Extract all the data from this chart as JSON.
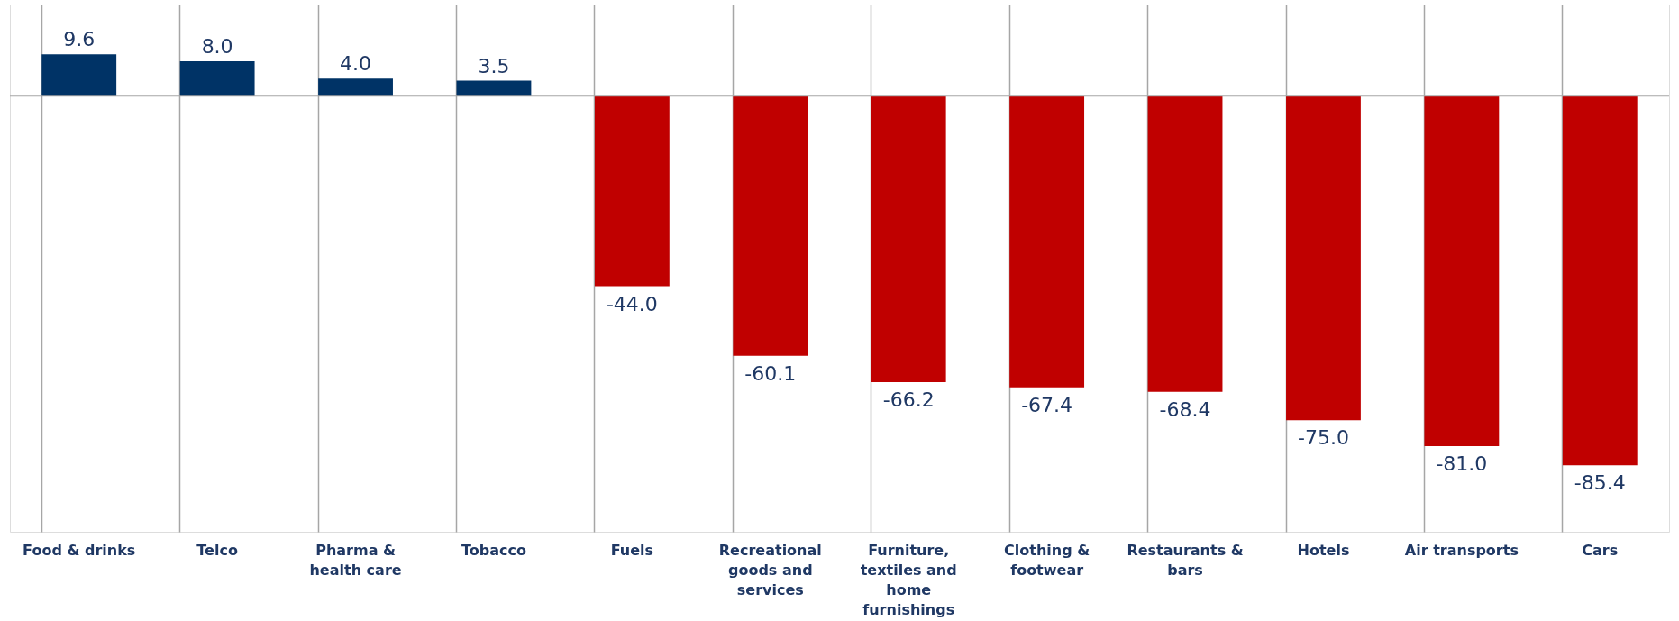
{
  "chart_data": {
    "type": "bar",
    "categories": [
      "Food & drinks",
      "Telco",
      "Pharma & health care",
      "Tobacco",
      "Fuels",
      "Recreational goods and services",
      "Furniture, textiles and home furnishings",
      "Clothing & footwear",
      "Restaurants & bars",
      "Hotels",
      "Air transports",
      "Cars"
    ],
    "values": [
      9.6,
      8.0,
      4.0,
      3.5,
      -44.0,
      -60.1,
      -66.2,
      -67.4,
      -68.4,
      -75.0,
      -81.0,
      -85.4
    ],
    "value_labels": [
      "9.6",
      "8.0",
      "4.0",
      "3.5",
      "-44.0",
      "-60.1",
      "-66.2",
      "-67.4",
      "-68.4",
      "-75.0",
      "-81.0",
      "-85.4"
    ],
    "colors": [
      "#003366",
      "#003366",
      "#003366",
      "#003366",
      "#c00000",
      "#c00000",
      "#c00000",
      "#c00000",
      "#c00000",
      "#c00000",
      "#c00000",
      "#c00000"
    ],
    "grid": "x"
  }
}
